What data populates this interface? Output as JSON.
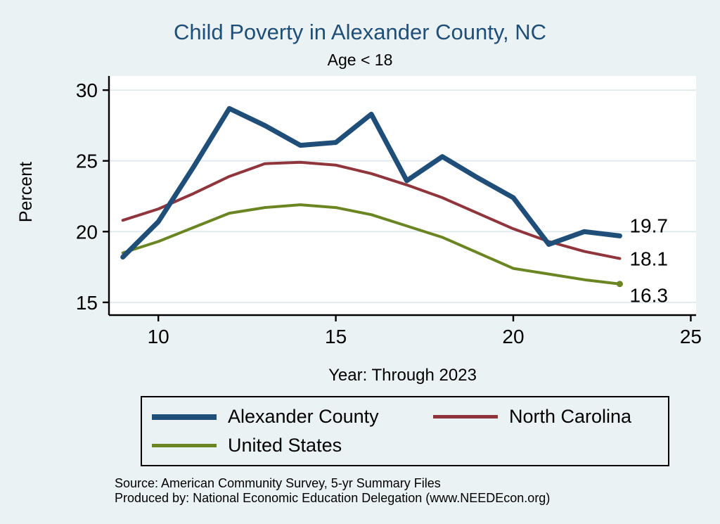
{
  "title": "Child Poverty in Alexander County, NC",
  "subtitle": "Age < 18",
  "axis": {
    "x_label": "Year: Through 2023",
    "y_label": "Percent"
  },
  "footer": {
    "source": "Source: American Community Survey, 5-yr Summary Files",
    "produced_by": "Produced by: National Economic Education Delegation (www.NEEDEcon.org)"
  },
  "colors": {
    "background": "#eaf2f3",
    "plot_background": "#ffffff",
    "title": "#1f4e79",
    "axis": "#000000",
    "grid": "#dbe7ea"
  },
  "chart_data": {
    "type": "line",
    "title": "Child Poverty in Alexander County, NC",
    "subtitle": "Age < 18",
    "xlabel": "Year: Through 2023",
    "ylabel": "Percent",
    "xlim": [
      8.61,
      25.15
    ],
    "ylim": [
      14.1,
      31.0
    ],
    "xticks": [
      10,
      15,
      20,
      25
    ],
    "yticks": [
      15,
      20,
      25,
      30
    ],
    "grid": "horizontal-only",
    "legend_position": "bottom",
    "x": [
      9,
      10,
      11,
      12,
      13,
      14,
      15,
      16,
      17,
      18,
      19,
      20,
      21,
      22,
      23
    ],
    "series": [
      {
        "name": "Alexander County",
        "color": "#1f4e79",
        "line_width": 7,
        "values": [
          18.2,
          20.7,
          24.6,
          28.7,
          27.5,
          26.1,
          26.3,
          28.3,
          23.6,
          25.3,
          23.8,
          22.4,
          19.1,
          20.0,
          19.7
        ],
        "end_label": "19.7",
        "end_label_dy": -15,
        "end_marker": false
      },
      {
        "name": "North Carolina",
        "color": "#90353b",
        "line_width": 4,
        "values": [
          20.8,
          21.6,
          22.7,
          23.9,
          24.8,
          24.9,
          24.7,
          24.1,
          23.3,
          22.4,
          21.3,
          20.2,
          19.3,
          18.6,
          18.1
        ],
        "end_label": "18.1",
        "end_label_dy": 0,
        "end_marker": false
      },
      {
        "name": "United States",
        "color": "#6b8522",
        "line_width": 4,
        "values": [
          18.5,
          19.3,
          20.3,
          21.3,
          21.7,
          21.9,
          21.7,
          21.2,
          20.4,
          19.6,
          18.5,
          17.4,
          17.0,
          16.6,
          16.3
        ],
        "end_label": "16.3",
        "end_label_dy": 16,
        "end_marker": true
      }
    ]
  }
}
